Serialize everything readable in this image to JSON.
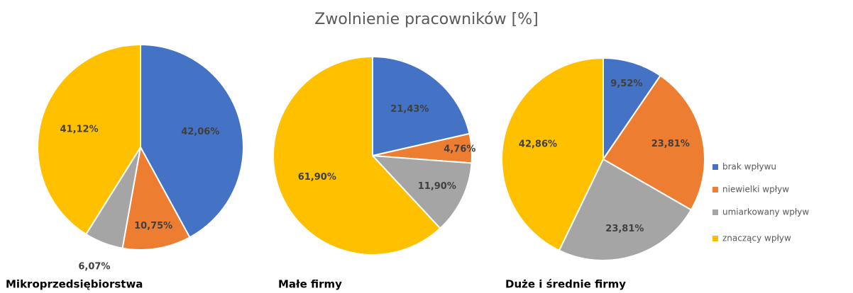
{
  "title": "Zwolnienie pracowników [%]",
  "categories": [
    "brak wpływu",
    "niewielki wpływ",
    "umiarkowany wpływ",
    "znaczący wpływ"
  ],
  "colors": [
    "#4472c4",
    "#ed7d31",
    "#a5a5a5",
    "#ffc000"
  ],
  "chart_data": [
    {
      "type": "pie",
      "title": "Mikroprzedsiębiorstwa",
      "values": [
        42.06,
        10.75,
        6.07,
        41.12
      ],
      "value_labels": [
        "42,06%",
        "10,75%",
        "6,07%",
        "41,12%"
      ]
    },
    {
      "type": "pie",
      "title": "Małe firmy",
      "values": [
        21.43,
        4.76,
        11.9,
        61.9
      ],
      "value_labels": [
        "21,43%",
        "4,76%",
        "11,90%",
        "61,90%"
      ]
    },
    {
      "type": "pie",
      "title": "Duże i średnie firmy",
      "values": [
        9.52,
        23.81,
        23.81,
        42.86
      ],
      "value_labels": [
        "9,52%",
        "23,81%",
        "23,81%",
        "42,86%"
      ]
    }
  ]
}
